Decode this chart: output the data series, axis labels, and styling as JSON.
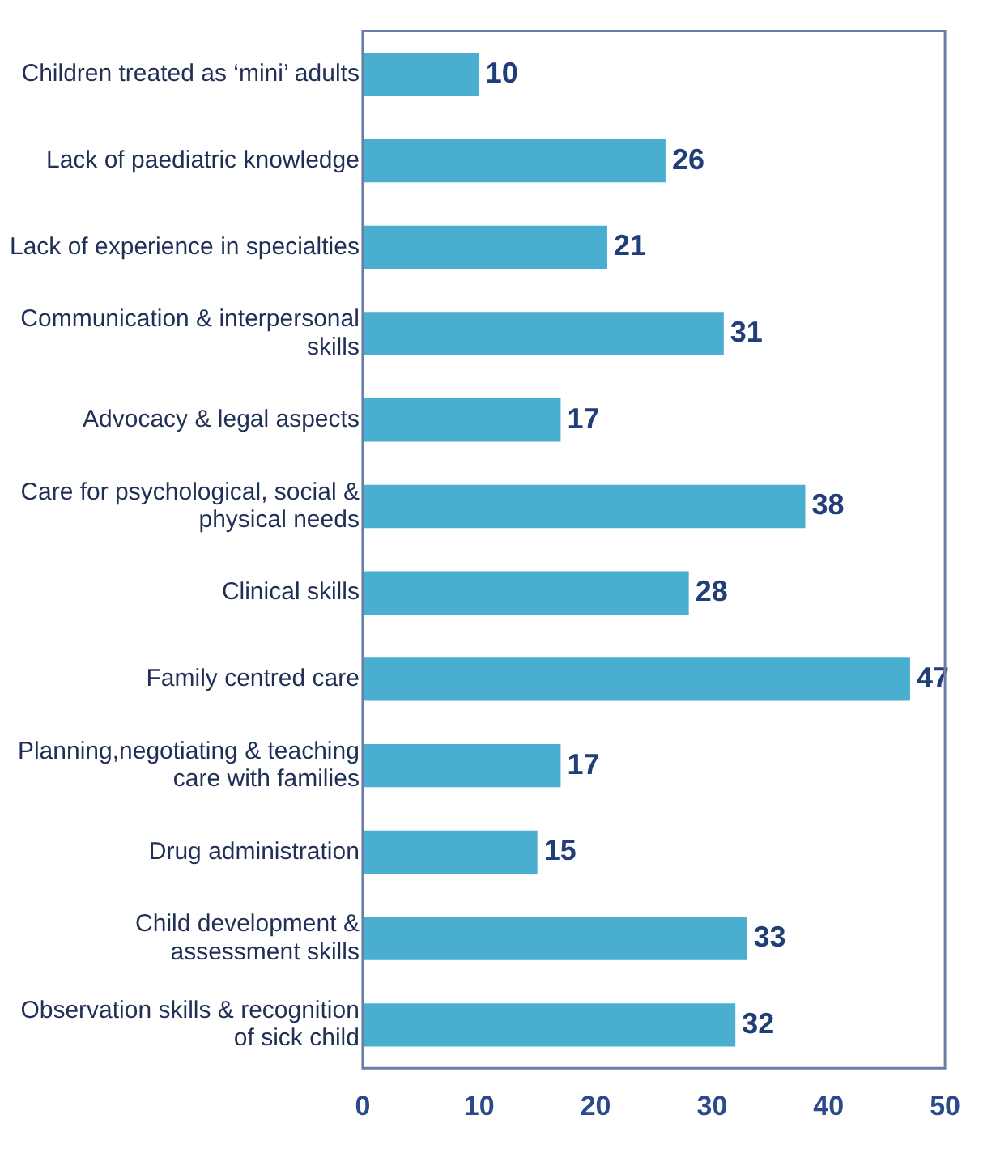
{
  "chart_data": {
    "type": "bar",
    "orientation": "horizontal",
    "categories": [
      "Children treated as ‘mini’ adults",
      "Lack of paediatric knowledge",
      "Lack of experience in specialties",
      "Communication & interpersonal skills",
      "Advocacy & legal aspects",
      "Care for psychological, social & physical needs",
      "Clinical skills",
      "Family centred care",
      "Planning,negotiating & teaching care with families",
      "Drug administration",
      "Child development & assessment skills",
      "Observation skills & recognition of sick child"
    ],
    "values": [
      10,
      26,
      21,
      31,
      17,
      38,
      28,
      47,
      17,
      15,
      33,
      32
    ],
    "color": "#4aaed0",
    "xlim": [
      0,
      50
    ],
    "xticks": [
      0,
      10,
      20,
      30,
      40,
      50
    ],
    "data_labels": true,
    "grid": false,
    "legend": false
  }
}
